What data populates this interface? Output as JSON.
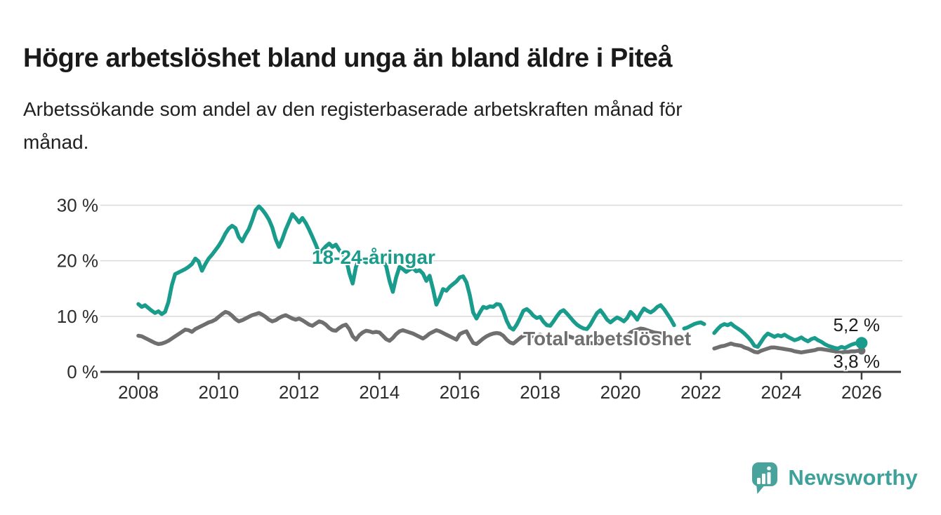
{
  "chart_data": {
    "type": "line",
    "title": "Högre arbetslöshet bland unga än bland äldre i Piteå",
    "subtitle_lines": [
      "Arbetssökande som andel av den registerbaserade arbetskraften månad för",
      "månad."
    ],
    "xlabel": "",
    "ylabel": "",
    "x_unit": "monthly",
    "x_start_year": 2008,
    "x_end_year": 2026,
    "ylim": [
      0,
      32
    ],
    "x_ticks": [
      2008,
      2010,
      2012,
      2014,
      2016,
      2018,
      2020,
      2022,
      2024,
      2026
    ],
    "y_ticks": [
      {
        "value": 0,
        "label": "0 %"
      },
      {
        "value": 10,
        "label": "10 %"
      },
      {
        "value": 20,
        "label": "20 %"
      },
      {
        "value": 30,
        "label": "30 %"
      }
    ],
    "grid": "horizontal",
    "legend_position": "inline-labels",
    "colors": {
      "grid": "#d9d9d9",
      "axis": "#3c3c3c",
      "tick_label": "#2d2d2d",
      "value_label": "#1d1d1d"
    },
    "series": [
      {
        "name": "18-24-åringar",
        "color": "#1a9c8d",
        "end_label": "5,2 %",
        "end_value": 5.2,
        "values": [
          12.2,
          11.7,
          12.0,
          11.5,
          11.0,
          10.6,
          10.9,
          10.4,
          10.8,
          12.6,
          15.6,
          17.6,
          17.9,
          18.2,
          18.5,
          18.9,
          19.4,
          20.4,
          19.9,
          18.2,
          19.4,
          20.4,
          21.1,
          21.9,
          22.7,
          23.7,
          24.9,
          25.8,
          26.3,
          25.9,
          24.3,
          23.5,
          24.7,
          25.7,
          27.3,
          29.1,
          29.8,
          29.2,
          28.4,
          27.4,
          26.0,
          23.9,
          22.5,
          23.9,
          25.6,
          27.0,
          28.4,
          27.7,
          26.9,
          27.7,
          26.8,
          25.6,
          24.3,
          22.9,
          21.4,
          21.9,
          22.6,
          23.1,
          22.5,
          22.9,
          21.9,
          21.3,
          20.5,
          17.8,
          15.9,
          18.9,
          20.4,
          20.1,
          19.7,
          20.0,
          20.3,
          19.8,
          19.6,
          19.9,
          19.1,
          16.4,
          14.4,
          17.0,
          18.9,
          18.5,
          18.0,
          18.4,
          18.7,
          18.1,
          18.3,
          17.7,
          16.4,
          17.3,
          14.9,
          12.1,
          13.3,
          14.9,
          14.6,
          15.3,
          15.8,
          16.3,
          17.0,
          17.2,
          16.1,
          13.8,
          10.7,
          9.6,
          10.7,
          11.7,
          11.5,
          11.8,
          11.7,
          12.2,
          12.1,
          10.9,
          9.2,
          8.0,
          7.6,
          8.5,
          9.7,
          11.0,
          11.3,
          10.8,
          10.1,
          9.7,
          9.9,
          9.0,
          8.4,
          8.3,
          9.1,
          10.0,
          10.8,
          11.1,
          10.5,
          9.8,
          9.1,
          8.5,
          8.1,
          7.8,
          7.7,
          8.5,
          9.6,
          10.6,
          11.1,
          10.3,
          9.4,
          8.9,
          9.4,
          9.8,
          9.5,
          9.1,
          9.7,
          10.8,
          10.2,
          9.4,
          10.5,
          11.4,
          11.0,
          10.7,
          11.1,
          11.7,
          12.0,
          11.3,
          10.4,
          9.5,
          8.4,
          null,
          null,
          7.8,
          8.0,
          8.3,
          8.6,
          8.8,
          8.9,
          8.6,
          null,
          null,
          7.0,
          7.7,
          8.3,
          8.6,
          8.4,
          8.7,
          8.2,
          7.8,
          7.4,
          6.9,
          6.3,
          5.6,
          4.7,
          4.5,
          5.4,
          6.3,
          6.9,
          6.6,
          6.3,
          6.6,
          6.4,
          6.7,
          6.3,
          6.0,
          5.7,
          5.9,
          6.2,
          5.8,
          5.5,
          5.9,
          6.1,
          5.7,
          5.4,
          5.0,
          4.7,
          4.5,
          4.3,
          4.2,
          4.5,
          4.3,
          4.6,
          4.9,
          5.1,
          5.2,
          5.2
        ]
      },
      {
        "name": "Total arbetslöshet",
        "color": "#6f6f6f",
        "end_label": "3,8 %",
        "end_value": 3.8,
        "values": [
          6.5,
          6.4,
          6.1,
          5.8,
          5.5,
          5.2,
          5.0,
          5.1,
          5.3,
          5.6,
          6.0,
          6.4,
          6.8,
          7.2,
          7.6,
          7.5,
          7.2,
          7.7,
          8.0,
          8.3,
          8.6,
          8.9,
          9.1,
          9.4,
          9.9,
          10.4,
          10.8,
          10.6,
          10.1,
          9.5,
          9.1,
          9.3,
          9.6,
          9.9,
          10.2,
          10.4,
          10.6,
          10.3,
          9.9,
          9.4,
          9.1,
          9.3,
          9.7,
          10.0,
          10.2,
          9.9,
          9.6,
          9.4,
          9.6,
          9.3,
          8.9,
          8.5,
          8.3,
          8.7,
          9.1,
          8.9,
          8.5,
          7.9,
          7.5,
          7.4,
          7.9,
          8.3,
          8.5,
          7.7,
          6.4,
          5.8,
          6.6,
          7.1,
          7.4,
          7.3,
          7.1,
          7.2,
          7.1,
          6.5,
          5.9,
          5.6,
          6.1,
          6.8,
          7.3,
          7.5,
          7.3,
          7.1,
          6.9,
          6.6,
          6.3,
          6.0,
          6.4,
          6.9,
          7.2,
          7.5,
          7.3,
          7.0,
          6.7,
          6.4,
          6.1,
          5.8,
          6.8,
          7.1,
          7.3,
          6.2,
          5.2,
          5.0,
          5.5,
          6.0,
          6.4,
          6.7,
          6.9,
          7.0,
          6.9,
          6.5,
          5.8,
          5.3,
          5.1,
          5.6,
          6.1,
          6.5,
          6.7,
          6.6,
          6.4,
          6.5,
          6.7,
          6.4,
          6.0,
          5.6,
          5.3,
          5.6,
          6.0,
          6.3,
          6.5,
          6.3,
          6.1,
          5.9,
          6.0,
          5.8,
          5.5,
          5.2,
          5.1,
          5.4,
          5.8,
          6.1,
          6.2,
          6.1,
          6.0,
          6.1,
          6.3,
          6.2,
          6.5,
          7.1,
          7.4,
          7.6,
          7.8,
          7.7,
          7.5,
          7.3,
          7.1,
          7.0,
          6.9,
          6.7,
          6.4,
          6.1,
          5.8,
          null,
          null,
          null,
          null,
          null,
          null,
          null,
          null,
          null,
          null,
          null,
          4.2,
          4.4,
          4.6,
          4.7,
          4.9,
          5.1,
          4.9,
          4.8,
          4.7,
          4.4,
          4.2,
          3.9,
          3.6,
          3.5,
          3.8,
          4.0,
          4.2,
          4.4,
          4.4,
          4.3,
          4.2,
          4.1,
          4.0,
          3.9,
          3.7,
          3.6,
          3.5,
          3.6,
          3.7,
          3.8,
          3.9,
          4.1,
          4.1,
          4.0,
          3.9,
          3.8,
          3.7,
          3.5,
          3.5,
          3.6,
          3.6,
          3.7,
          3.7,
          3.8,
          3.8
        ]
      }
    ]
  },
  "logo": {
    "name": "Newsworthy",
    "mark_icon": "speech-bubble-bar-chart-icon",
    "mark_color": "#47a39b",
    "text_color": "#3fa29a"
  }
}
